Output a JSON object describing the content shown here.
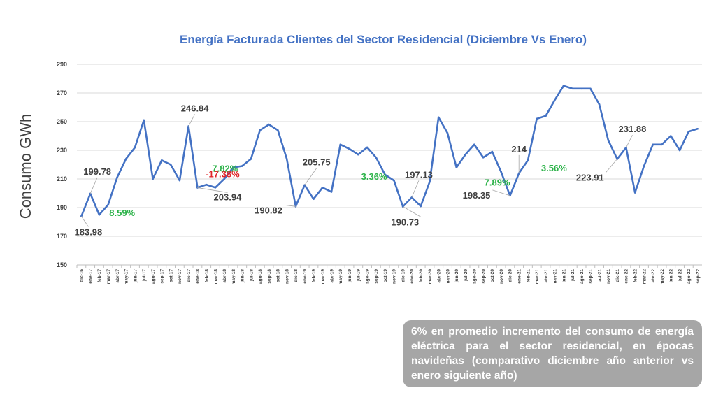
{
  "chart_data": {
    "type": "line",
    "title": "Energía Facturada Clientes del Sector Residencial (Diciembre Vs Enero)",
    "ylabel": "Consumo GWh",
    "xlabel": "",
    "ylim": [
      150,
      290
    ],
    "yticks": [
      150,
      170,
      190,
      210,
      230,
      250,
      270,
      290
    ],
    "line_color": "#4472c4",
    "categories": [
      "dic-16",
      "ene-17",
      "feb-17",
      "mar-17",
      "abr-17",
      "may-17",
      "jun-17",
      "jul-17",
      "ago-17",
      "sep-17",
      "oct-17",
      "nov-17",
      "dic-17",
      "ene-18",
      "feb-18",
      "mar-18",
      "abr-18",
      "may-18",
      "jun-18",
      "jul-18",
      "ago-18",
      "sep-18",
      "oct-18",
      "nov-18",
      "dic-18",
      "ene-19",
      "feb-19",
      "mar-19",
      "abr-19",
      "may-19",
      "jun-19",
      "jul-19",
      "ago-19",
      "sep-19",
      "oct-19",
      "nov-19",
      "dic-19",
      "ene-20",
      "feb-20",
      "mar-20",
      "abr-20",
      "may-20",
      "jun-20",
      "jul-20",
      "ago-20",
      "sep-20",
      "oct-20",
      "nov-20",
      "dic-20",
      "ene-21",
      "feb-21",
      "mar-21",
      "abr-21",
      "may-21",
      "jun-21",
      "jul-21",
      "ago-21",
      "sep-21",
      "oct-21",
      "nov-21",
      "dic-21",
      "ene-22",
      "feb-22",
      "mar-22",
      "abr-22",
      "may-22",
      "jun-22",
      "jul-22",
      "ago-22",
      "sep-22"
    ],
    "values": [
      183.98,
      199.78,
      185,
      192,
      211,
      224,
      232,
      251,
      210,
      223,
      220,
      209,
      246.84,
      203.94,
      206,
      204,
      210,
      218,
      219,
      224,
      244,
      248,
      244,
      224,
      190.82,
      205.75,
      196,
      204,
      201,
      234,
      231,
      227,
      232,
      225,
      213,
      209,
      190.73,
      197.13,
      191,
      208,
      253,
      242,
      218,
      227,
      234,
      225,
      229,
      215,
      198.35,
      214,
      223,
      252,
      254,
      265,
      275,
      273,
      273,
      273,
      262,
      237,
      223.91,
      231.88,
      200.5,
      219,
      234,
      234,
      240,
      230,
      243,
      245
    ],
    "annotations": [
      {
        "label": "183.98",
        "index": 0,
        "color": "#404040"
      },
      {
        "label": "199.78",
        "index": 1,
        "color": "#404040"
      },
      {
        "label": "8.59%",
        "index": 3,
        "color": "#2db34a"
      },
      {
        "label": "246.84",
        "index": 12,
        "color": "#404040"
      },
      {
        "label": "-17.38%",
        "index": 13,
        "color": "#e0262a"
      },
      {
        "label": "203.94",
        "index": 13,
        "color": "#404040"
      },
      {
        "label": "7.82%",
        "index": 20,
        "color": "#2db34a"
      },
      {
        "label": "190.82",
        "index": 24,
        "color": "#404040"
      },
      {
        "label": "205.75",
        "index": 25,
        "color": "#404040"
      },
      {
        "label": "3.36%",
        "index": 32,
        "color": "#2db34a"
      },
      {
        "label": "190.73",
        "index": 36,
        "color": "#404040"
      },
      {
        "label": "197.13",
        "index": 37,
        "color": "#404040"
      },
      {
        "label": "7.89%",
        "index": 45,
        "color": "#2db34a"
      },
      {
        "label": "198.35",
        "index": 48,
        "color": "#404040"
      },
      {
        "label": "214",
        "index": 49,
        "color": "#404040"
      },
      {
        "label": "3.56%",
        "index": 57,
        "color": "#2db34a"
      },
      {
        "label": "223.91",
        "index": 60,
        "color": "#404040"
      },
      {
        "label": "231.88",
        "index": 61,
        "color": "#404040"
      }
    ]
  },
  "note": {
    "text": "6% en promedio incremento del consumo de energía eléctrica para el sector residencial, en épocas navideñas (comparativo diciembre año anterior vs enero siguiente año)"
  }
}
